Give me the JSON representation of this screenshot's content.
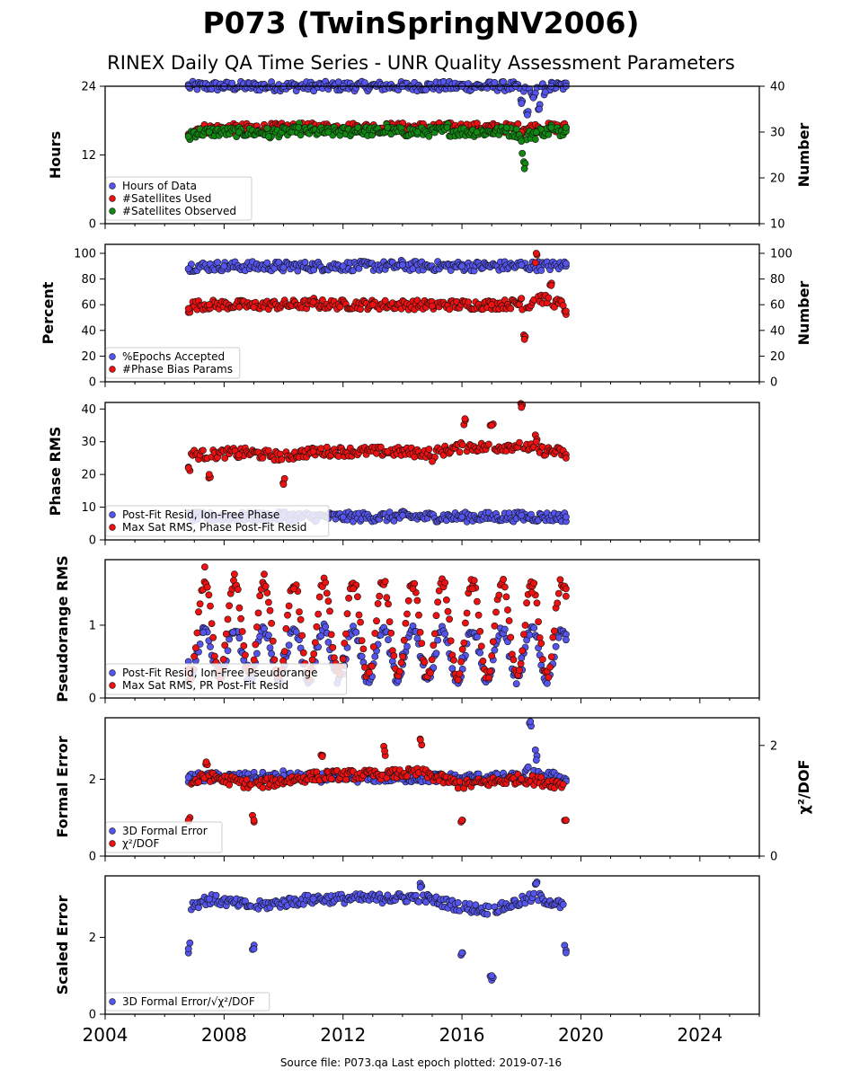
{
  "title": "P073 (TwinSpringNV2006)",
  "subtitle": "RINEX Daily QA Time Series - UNR Quality Assessment Parameters",
  "footer": "Source file: P073.qa Last epoch plotted: 2019-07-16",
  "colors": {
    "blue": "#5555ee",
    "red": "#ee1111",
    "green": "#118811",
    "edge": "#111111"
  },
  "chart_data": [
    {
      "type": "scatter",
      "panel": "hours-satellites",
      "ylabel": "Hours",
      "ylabel_right": "Number",
      "ylim": [
        0,
        24
      ],
      "yticks": [
        "0",
        "12",
        "24"
      ],
      "ylim_right": [
        10,
        40
      ],
      "yticks_right": [
        "10",
        "20",
        "30",
        "40"
      ],
      "xlim": [
        2004,
        2026
      ],
      "xticks": [
        "2004",
        "2008",
        "2012",
        "2016",
        "2020",
        "2024"
      ],
      "grid": false,
      "legend_position": "lower-left",
      "series": [
        {
          "name": "Hours of Data",
          "color": "blue",
          "axis": "left",
          "x": [
            2006.8,
            2008.0,
            2010.0,
            2012.0,
            2014.0,
            2016.0,
            2017.8,
            2018.0,
            2018.2,
            2018.4,
            2018.6,
            2018.8,
            2019.0,
            2019.5
          ],
          "y": [
            24,
            24,
            24,
            24,
            24,
            24,
            24,
            21,
            19,
            22,
            20,
            23,
            24,
            24
          ]
        },
        {
          "name": "#Satellites Used",
          "color": "red",
          "axis": "right",
          "x": [
            2006.8,
            2009.0,
            2012.0,
            2016.0,
            2018.0,
            2019.5
          ],
          "y": [
            29,
            30,
            31,
            31,
            30,
            31
          ]
        },
        {
          "name": "#Satellites Observed",
          "color": "green",
          "axis": "right",
          "x": [
            2006.8,
            2007.5,
            2008.5,
            2009.5,
            2010.5,
            2011.5,
            2012.5,
            2013.5,
            2014.5,
            2015.5,
            2016.5,
            2017.5,
            2018.0,
            2018.1,
            2018.5,
            2019.0,
            2019.5
          ],
          "y": [
            29,
            30,
            30,
            29,
            31,
            30,
            31,
            31,
            30,
            31,
            30,
            31,
            28,
            22,
            30,
            31,
            31
          ]
        }
      ]
    },
    {
      "type": "scatter",
      "panel": "epochs-bias",
      "ylabel": "Percent",
      "ylabel_right": "Number",
      "ylim": [
        0,
        107
      ],
      "yticks": [
        "0",
        "20",
        "40",
        "60",
        "80",
        "100"
      ],
      "ylim_right": [
        0,
        107
      ],
      "yticks_right": [
        "0",
        "20",
        "40",
        "60",
        "80",
        "100"
      ],
      "xlim": [
        2004,
        2026
      ],
      "grid": false,
      "legend_position": "lower-left",
      "series": [
        {
          "name": "%Epochs Accepted",
          "color": "blue",
          "axis": "left",
          "x": [
            2006.8,
            2008.0,
            2010.0,
            2012.0,
            2014.0,
            2016.0,
            2018.0,
            2019.5
          ],
          "y": [
            88,
            90,
            89,
            90,
            91,
            90,
            91,
            92
          ]
        },
        {
          "name": "#Phase Bias Params",
          "color": "red",
          "axis": "right",
          "x": [
            2006.8,
            2007.5,
            2009.0,
            2011.0,
            2013.0,
            2015.0,
            2017.0,
            2018.0,
            2018.1,
            2018.5,
            2019.0,
            2019.5
          ],
          "y": [
            57,
            60,
            58,
            62,
            60,
            59,
            60,
            65,
            33,
            100,
            75,
            55
          ]
        }
      ]
    },
    {
      "type": "scatter",
      "panel": "phase-rms",
      "ylabel": "Phase RMS",
      "ylim": [
        0,
        42
      ],
      "yticks": [
        "0",
        "10",
        "20",
        "30",
        "40"
      ],
      "xlim": [
        2004,
        2026
      ],
      "grid": false,
      "legend_position": "lower-left",
      "series": [
        {
          "name": "Post-Fit Resid, Ion-Free Phase",
          "color": "blue",
          "x": [
            2006.8,
            2008.0,
            2010.0,
            2012.0,
            2014.0,
            2016.0,
            2018.0,
            2019.5
          ],
          "y": [
            7,
            7,
            7.5,
            7,
            7.5,
            7,
            7.5,
            7
          ]
        },
        {
          "name": "Max Sat RMS, Phase Post-Fit Resid",
          "color": "red",
          "x": [
            2006.8,
            2007.5,
            2008.5,
            2010.0,
            2011.0,
            2013.5,
            2015.0,
            2016.1,
            2017.0,
            2018.0,
            2018.5,
            2019.5
          ],
          "y": [
            22,
            20,
            26,
            17,
            27,
            27,
            24,
            37,
            35,
            40.5,
            30,
            25
          ]
        }
      ]
    },
    {
      "type": "scatter",
      "panel": "pseudorange-rms",
      "ylabel": "Pseudorange RMS",
      "ylim": [
        0,
        1.9
      ],
      "yticks": [
        "0",
        "1"
      ],
      "xlim": [
        2004,
        2026
      ],
      "grid": false,
      "legend_position": "lower-left",
      "series": [
        {
          "name": "Post-Fit Resid, Ion-Free Pseudorange",
          "color": "blue",
          "x": [
            2006.8,
            2007.3,
            2007.8,
            2008.3,
            2008.8,
            2010.0,
            2012.0,
            2014.0,
            2016.0,
            2018.0,
            2019.5
          ],
          "y": [
            0.5,
            0.9,
            0.45,
            0.9,
            0.45,
            0.6,
            0.55,
            0.6,
            0.55,
            0.55,
            0.8
          ]
        },
        {
          "name": "Max Sat RMS, PR Post-Fit Resid",
          "color": "red",
          "x": [
            2006.8,
            2007.35,
            2007.85,
            2008.35,
            2008.85,
            2009.35,
            2010.35,
            2012.35,
            2014.35,
            2016.35,
            2018.35,
            2019.5
          ],
          "y": [
            0.4,
            1.8,
            0.4,
            1.7,
            0.4,
            1.7,
            1.5,
            1.5,
            1.5,
            1.5,
            1.45,
            1.5
          ]
        }
      ]
    },
    {
      "type": "scatter",
      "panel": "formal-error",
      "ylabel": "Formal Error",
      "ylabel_right": "χ²/DOF",
      "ylim": [
        0,
        3.6
      ],
      "yticks": [
        "0",
        "2"
      ],
      "ylim_right": [
        0,
        2.5
      ],
      "yticks_right": [
        "0",
        "2"
      ],
      "xlim": [
        2004,
        2026
      ],
      "grid": false,
      "legend_position": "lower-left",
      "series": [
        {
          "name": "3D Formal Error",
          "color": "blue",
          "axis": "left",
          "x": [
            2006.8,
            2008.0,
            2010.0,
            2012.0,
            2014.0,
            2016.0,
            2018.0,
            2018.3,
            2018.5,
            2019.5
          ],
          "y": [
            2.05,
            2.05,
            2.1,
            2.0,
            2.0,
            1.95,
            2.0,
            3.5,
            2.5,
            1.95
          ]
        },
        {
          "name": "χ²/DOF",
          "color": "red",
          "axis": "right",
          "x": [
            2006.8,
            2007.4,
            2009.0,
            2011.3,
            2013.4,
            2014.6,
            2016.0,
            2018.0,
            2019.5
          ],
          "y": [
            0.65,
            1.7,
            0.65,
            1.8,
            1.9,
            2.1,
            0.65,
            1.4,
            0.65
          ]
        }
      ]
    },
    {
      "type": "scatter",
      "panel": "scaled-error",
      "ylabel": "Scaled Error",
      "ylim": [
        0,
        3.6
      ],
      "yticks": [
        "0",
        "2"
      ],
      "xlim": [
        2004,
        2026
      ],
      "xticks": [
        "2004",
        "2008",
        "2012",
        "2016",
        "2020",
        "2024"
      ],
      "grid": false,
      "legend_position": "lower-left",
      "series": [
        {
          "name": "3D Formal Error/√χ²/DOF",
          "color": "blue",
          "x": [
            2006.8,
            2007.5,
            2009.0,
            2011.0,
            2013.5,
            2014.6,
            2016.0,
            2017.0,
            2018.5,
            2019.5
          ],
          "y": [
            1.7,
            3.0,
            1.7,
            3.0,
            3.1,
            3.3,
            1.6,
            1.0,
            3.4,
            1.6
          ]
        }
      ]
    }
  ]
}
